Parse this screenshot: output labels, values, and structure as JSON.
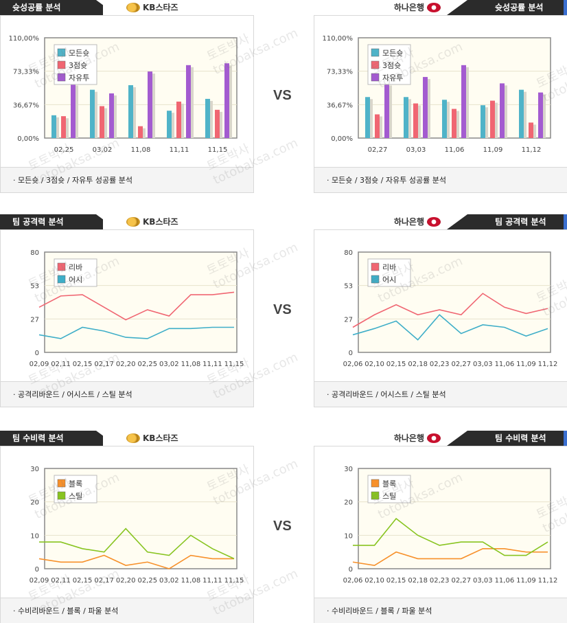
{
  "vs_label": "VS",
  "teams": {
    "left": "KB스타즈",
    "right": "하나은행"
  },
  "watermark": {
    "ko": "토토박사",
    "en": "totobaksa.com"
  },
  "colors": {
    "allshot": "#4fb3c8",
    "three": "#f06672",
    "free": "#a35bd0",
    "rebound": "#f06672",
    "assist": "#3eaec8",
    "block": "#f7902a",
    "steal": "#88c420"
  },
  "sections": [
    {
      "title": "슛성공률 분석",
      "footer": "모든슛 / 3점슛 / 자유투 성공률 분석"
    },
    {
      "title": "팀 공격력 분석",
      "footer": "공격리바운드 / 어시스트 / 스틸 분석"
    },
    {
      "title": "팀 수비력 분석",
      "footer": "수비리바운드 / 블록 / 파울 분석"
    }
  ],
  "chart_data": [
    {
      "type": "bar",
      "team": "KB스타즈",
      "categories": [
        "02,25",
        "03,02",
        "11,08",
        "11,11",
        "11,15"
      ],
      "y_ticks": [
        "0,00%",
        "36,67%",
        "73,33%",
        "110,00%"
      ],
      "ylim": [
        0,
        110
      ],
      "legend_position": "top-left",
      "series": [
        {
          "name": "모든슛",
          "color": "#4fb3c8",
          "values": [
            25,
            53,
            58,
            30,
            43
          ]
        },
        {
          "name": "3점슛",
          "color": "#f06672",
          "values": [
            24,
            35,
            13,
            40,
            31
          ]
        },
        {
          "name": "자유투",
          "color": "#a35bd0",
          "values": [
            60,
            49,
            73,
            80,
            82
          ]
        }
      ]
    },
    {
      "type": "bar",
      "team": "하나은행",
      "categories": [
        "02,27",
        "03,03",
        "11,06",
        "11,09",
        "11,12"
      ],
      "y_ticks": [
        "0,00%",
        "36,67%",
        "73,33%",
        "110,00%"
      ],
      "ylim": [
        0,
        110
      ],
      "legend_position": "top-left",
      "series": [
        {
          "name": "모든슛",
          "color": "#4fb3c8",
          "values": [
            45,
            45,
            42,
            36,
            53
          ]
        },
        {
          "name": "3점슛",
          "color": "#f06672",
          "values": [
            26,
            38,
            32,
            41,
            17
          ]
        },
        {
          "name": "자유투",
          "color": "#a35bd0",
          "values": [
            60,
            67,
            80,
            60,
            50
          ]
        }
      ]
    },
    {
      "type": "line",
      "team": "KB스타즈",
      "categories": [
        "02,09",
        "02,11",
        "02,15",
        "02,17",
        "02,20",
        "02,25",
        "03,02",
        "11,08",
        "11,11",
        "11,15"
      ],
      "y_ticks": [
        "0",
        "27",
        "53",
        "80"
      ],
      "ylim": [
        0,
        80
      ],
      "legend_position": "top-left",
      "series": [
        {
          "name": "리바",
          "color": "#f06672",
          "values": [
            36,
            45,
            46,
            36,
            26,
            34,
            29,
            46,
            46,
            48
          ]
        },
        {
          "name": "어시",
          "color": "#3eaec8",
          "values": [
            14,
            11,
            20,
            17,
            12,
            11,
            19,
            19,
            20,
            20
          ]
        }
      ]
    },
    {
      "type": "line",
      "team": "하나은행",
      "categories": [
        "02,06",
        "02,10",
        "02,15",
        "02,18",
        "02,23",
        "02,27",
        "03,03",
        "11,06",
        "11,09",
        "11,12"
      ],
      "y_ticks": [
        "0",
        "27",
        "53",
        "80"
      ],
      "ylim": [
        0,
        80
      ],
      "legend_position": "top-left",
      "series": [
        {
          "name": "리바",
          "color": "#f06672",
          "values": [
            20,
            30,
            38,
            30,
            34,
            30,
            47,
            36,
            31,
            35
          ]
        },
        {
          "name": "어시",
          "color": "#3eaec8",
          "values": [
            14,
            19,
            25,
            10,
            30,
            15,
            22,
            20,
            13,
            19
          ]
        }
      ]
    },
    {
      "type": "line",
      "team": "KB스타즈",
      "categories": [
        "02,09",
        "02,11",
        "02,15",
        "02,17",
        "02,20",
        "02,25",
        "03,02",
        "11,08",
        "11,11",
        "11,15"
      ],
      "y_ticks": [
        "0",
        "10",
        "20",
        "30"
      ],
      "ylim": [
        0,
        30
      ],
      "legend_position": "top-left",
      "series": [
        {
          "name": "블록",
          "color": "#f7902a",
          "values": [
            3,
            2,
            2,
            4,
            1,
            2,
            0,
            4,
            3,
            3
          ]
        },
        {
          "name": "스틸",
          "color": "#88c420",
          "values": [
            8,
            8,
            6,
            5,
            12,
            5,
            4,
            10,
            6,
            3
          ]
        }
      ]
    },
    {
      "type": "line",
      "team": "하나은행",
      "categories": [
        "02,06",
        "02,10",
        "02,15",
        "02,18",
        "02,23",
        "02,27",
        "03,03",
        "11,06",
        "11,09",
        "11,12"
      ],
      "y_ticks": [
        "0",
        "10",
        "20",
        "30"
      ],
      "ylim": [
        0,
        30
      ],
      "legend_position": "top-left",
      "series": [
        {
          "name": "블록",
          "color": "#f7902a",
          "values": [
            2,
            1,
            5,
            3,
            3,
            3,
            6,
            6,
            5,
            5
          ]
        },
        {
          "name": "스틸",
          "color": "#88c420",
          "values": [
            7,
            7,
            15,
            10,
            7,
            8,
            8,
            4,
            4,
            8
          ]
        }
      ]
    }
  ]
}
